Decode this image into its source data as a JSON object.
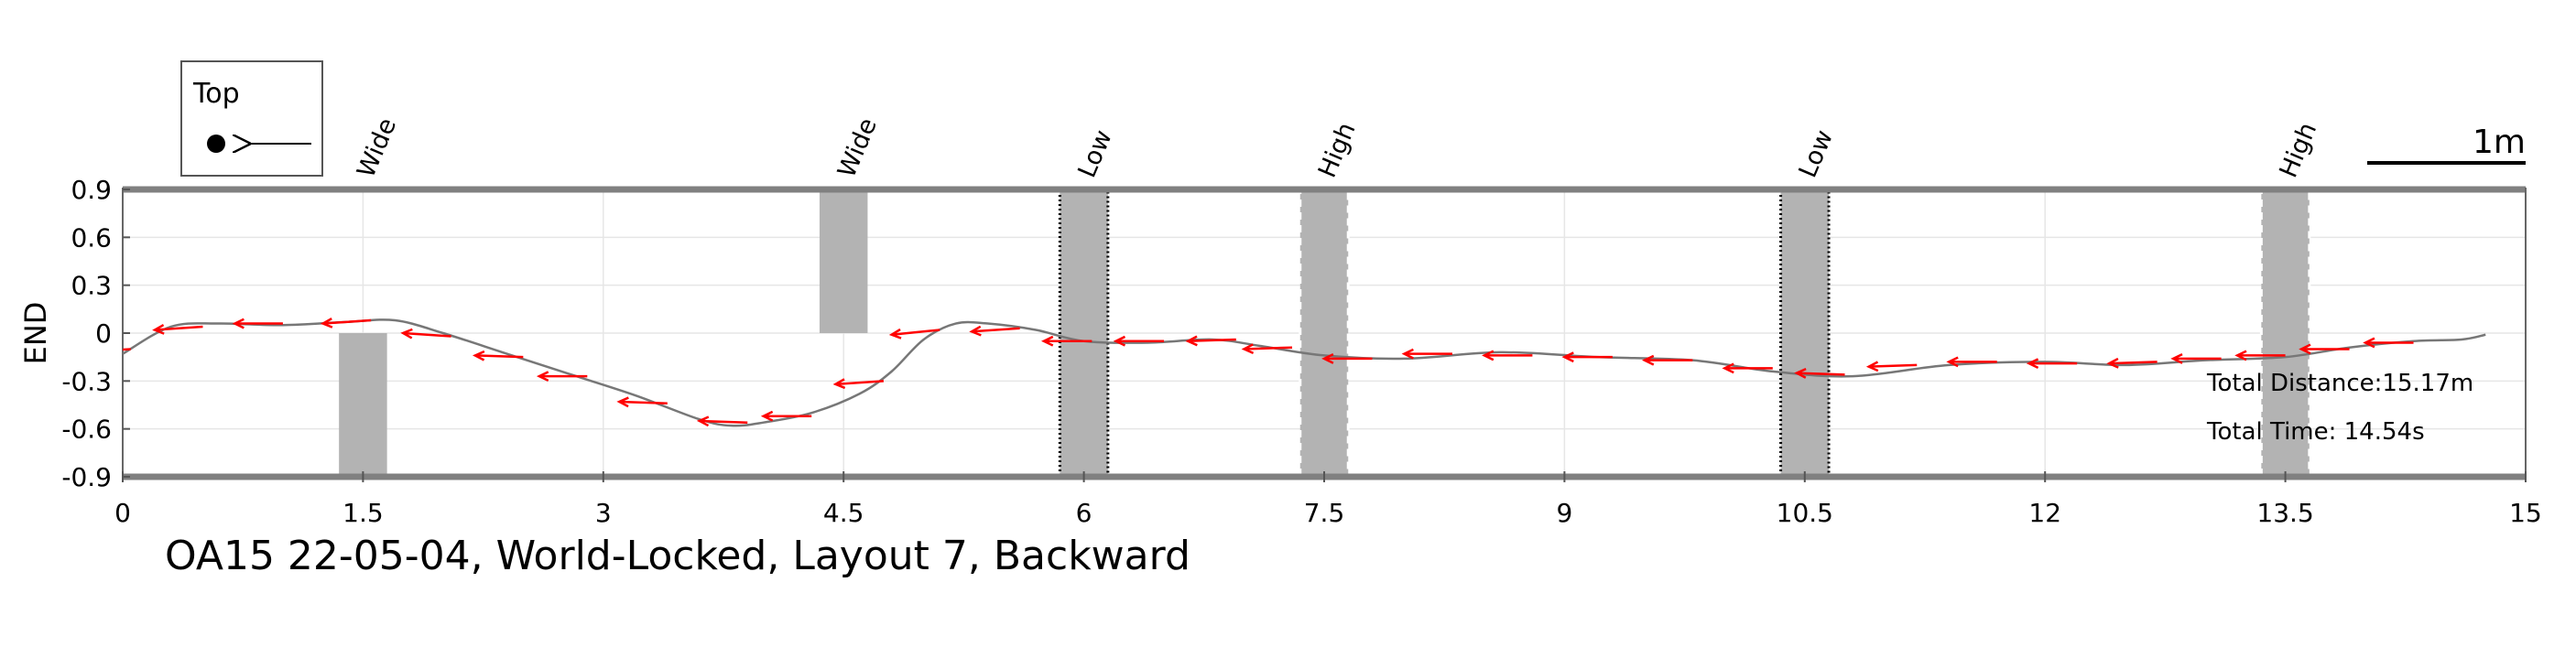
{
  "chart_data": {
    "type": "line",
    "title": "OA15 22-05-04, World-Locked, Layout 7, Backward",
    "xlabel": "",
    "ylabel": "END",
    "xlim": [
      0,
      15
    ],
    "ylim": [
      -0.9,
      0.9
    ],
    "xticks": [
      "0",
      "1.5",
      "3",
      "4.5",
      "6",
      "7.5",
      "9",
      "10.5",
      "12",
      "13.5",
      "15"
    ],
    "yticks": [
      "0.9",
      "0.6",
      "0.3",
      "0",
      "-0.3",
      "-0.6",
      "-0.9"
    ],
    "grid": true,
    "legend": {
      "label": "Top",
      "position": "top-left",
      "symbols": [
        "filled-dot",
        "left-arrow"
      ]
    },
    "scale_bar": {
      "label": "1m",
      "length": 1,
      "position": "top-right"
    },
    "obstacles": [
      {
        "label": "Wide",
        "x": [
          1.35,
          1.65
        ],
        "y": [
          -0.9,
          0.0
        ],
        "style": "plain"
      },
      {
        "label": "Wide",
        "x": [
          4.35,
          4.65
        ],
        "y": [
          0.0,
          0.9
        ],
        "style": "plain"
      },
      {
        "label": "Low",
        "x": [
          5.85,
          6.15
        ],
        "y": [
          -0.9,
          0.9
        ],
        "style": "dotted-black"
      },
      {
        "label": "High",
        "x": [
          7.35,
          7.65
        ],
        "y": [
          -0.9,
          0.9
        ],
        "style": "dashed-white"
      },
      {
        "label": "Low",
        "x": [
          10.35,
          10.65
        ],
        "y": [
          -0.9,
          0.9
        ],
        "style": "dotted-black"
      },
      {
        "label": "High",
        "x": [
          13.35,
          13.65
        ],
        "y": [
          -0.9,
          0.9
        ],
        "style": "dashed-white"
      }
    ],
    "path": {
      "x": [
        0.0,
        0.3,
        0.6,
        1.0,
        1.4,
        1.7,
        2.0,
        2.4,
        2.8,
        3.2,
        3.6,
        3.8,
        4.0,
        4.3,
        4.6,
        4.8,
        5.0,
        5.2,
        5.4,
        5.7,
        6.0,
        6.4,
        6.8,
        7.1,
        7.5,
        8.0,
        8.6,
        9.2,
        9.8,
        10.3,
        10.8,
        11.4,
        12.0,
        12.5,
        13.0,
        13.5,
        13.9,
        14.3,
        14.6,
        14.75
      ],
      "y": [
        -0.13,
        0.04,
        0.06,
        0.05,
        0.07,
        0.08,
        0.0,
        -0.13,
        -0.26,
        -0.39,
        -0.54,
        -0.58,
        -0.56,
        -0.5,
        -0.38,
        -0.24,
        -0.04,
        0.06,
        0.06,
        0.02,
        -0.05,
        -0.06,
        -0.04,
        -0.08,
        -0.14,
        -0.16,
        -0.12,
        -0.15,
        -0.17,
        -0.24,
        -0.27,
        -0.2,
        -0.18,
        -0.2,
        -0.17,
        -0.15,
        -0.09,
        -0.05,
        -0.04,
        -0.01
      ]
    },
    "heading_arrows": {
      "x": [
        0.05,
        0.5,
        1.0,
        1.55,
        2.05,
        2.5,
        2.9,
        3.4,
        3.9,
        4.3,
        4.75,
        5.1,
        5.6,
        6.05,
        6.5,
        6.95,
        7.3,
        7.8,
        8.3,
        8.8,
        9.3,
        9.8,
        10.3,
        10.75,
        11.2,
        11.7,
        12.2,
        12.7,
        13.1,
        13.5,
        13.9,
        14.3
      ],
      "y": [
        -0.1,
        0.04,
        0.06,
        0.08,
        -0.02,
        -0.15,
        -0.27,
        -0.44,
        -0.56,
        -0.52,
        -0.3,
        0.02,
        0.03,
        -0.05,
        -0.05,
        -0.04,
        -0.09,
        -0.16,
        -0.13,
        -0.14,
        -0.15,
        -0.17,
        -0.22,
        -0.26,
        -0.2,
        -0.18,
        -0.19,
        -0.18,
        -0.16,
        -0.14,
        -0.1,
        -0.06
      ],
      "dx": -0.3,
      "dy": [
        -0.02,
        -0.02,
        0.0,
        -0.02,
        0.02,
        0.01,
        0.0,
        0.01,
        0.01,
        0.0,
        -0.02,
        -0.03,
        -0.02,
        0.0,
        0.0,
        -0.01,
        -0.01,
        0.0,
        0.0,
        0.0,
        0.0,
        0.0,
        0.0,
        0.01,
        -0.01,
        0.0,
        0.0,
        -0.01,
        0.0,
        0.0,
        0.0,
        0.0
      ],
      "color": "#ff0000"
    },
    "annotations": [
      "Total Distance:15.17m",
      "Total Time: 14.54s"
    ],
    "colors": {
      "path": "#777777",
      "arrows": "#ff0000",
      "obstacle_fill": "#b3b3b3",
      "frame": "#808080",
      "grid": "#e6e6e6"
    }
  }
}
